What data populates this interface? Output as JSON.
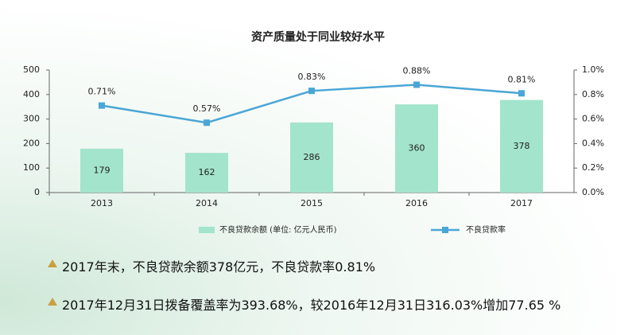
{
  "chart_data": {
    "type": "bar",
    "title": "资产质量处于同业较好水平",
    "categories": [
      "2013",
      "2014",
      "2015",
      "2016",
      "2017"
    ],
    "series": [
      {
        "name": "不良贷款余额 (单位: 亿元人民币)",
        "color": "#a3e4cc",
        "values": [
          179,
          162,
          286,
          360,
          378
        ]
      },
      {
        "name": "不良贷款率",
        "type": "line",
        "axis": "y2",
        "color": "#4aa6d6",
        "values": [
          0.71,
          0.57,
          0.83,
          0.88,
          0.81
        ],
        "value_labels": [
          "0.71%",
          "0.57%",
          "0.83%",
          "0.88%",
          "0.81%"
        ]
      }
    ],
    "ylim": [
      0,
      500
    ],
    "yticks": [
      0,
      100,
      200,
      300,
      400,
      500
    ],
    "y2lim": [
      0,
      1.0
    ],
    "y2ticks": [
      {
        "value": 0,
        "label": "0.0%"
      },
      {
        "value": 0.2,
        "label": "0.2%"
      },
      {
        "value": 0.4,
        "label": "0.4%"
      },
      {
        "value": 0.6,
        "label": "0.6%"
      },
      {
        "value": 0.8,
        "label": "0.8%"
      },
      {
        "value": 1.0,
        "label": "1.0%"
      }
    ],
    "grid": false,
    "legend": "bottom"
  },
  "notes": [
    "2017年末，不良贷款余额378亿元，不良贷款率0.81%",
    "2017年12月31日拨备覆盖率为393.68%，较2016年12月31日316.03%增加77.65 %"
  ]
}
